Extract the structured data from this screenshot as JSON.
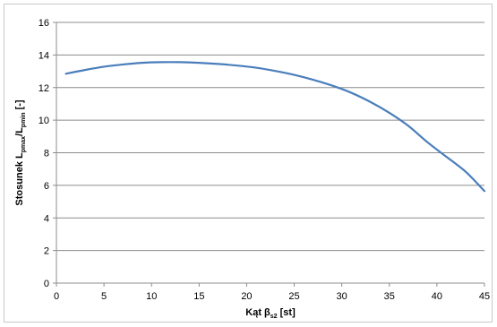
{
  "chart_data": {
    "type": "line",
    "title": "",
    "xlabel": "Kąt β",
    "xlabel_sub": "s2",
    "xlabel_suffix": " [st]",
    "ylabel": "Stosunek L",
    "ylabel_sub1": "pmax",
    "ylabel_mid": "/L",
    "ylabel_sub2": "pmin",
    "ylabel_suffix": " [-]",
    "xlim": [
      0,
      45
    ],
    "ylim": [
      0,
      16
    ],
    "xticks": [
      0,
      5,
      10,
      15,
      20,
      25,
      30,
      35,
      40,
      45
    ],
    "yticks": [
      0,
      2,
      4,
      6,
      8,
      10,
      12,
      14,
      16
    ],
    "grid": "horizontal",
    "legend": "none",
    "line_color": "#4a7ebb",
    "series": [
      {
        "x": [
          1,
          3,
          5,
          7,
          9,
          11,
          13,
          15,
          17,
          19,
          21,
          23,
          25,
          27,
          29,
          31,
          33,
          35,
          37,
          39,
          41,
          43,
          45
        ],
        "values": [
          12.85,
          13.08,
          13.28,
          13.42,
          13.52,
          13.56,
          13.56,
          13.52,
          13.45,
          13.35,
          13.22,
          13.02,
          12.78,
          12.48,
          12.12,
          11.68,
          11.12,
          10.45,
          9.65,
          8.65,
          7.75,
          6.85,
          5.65
        ]
      }
    ]
  }
}
